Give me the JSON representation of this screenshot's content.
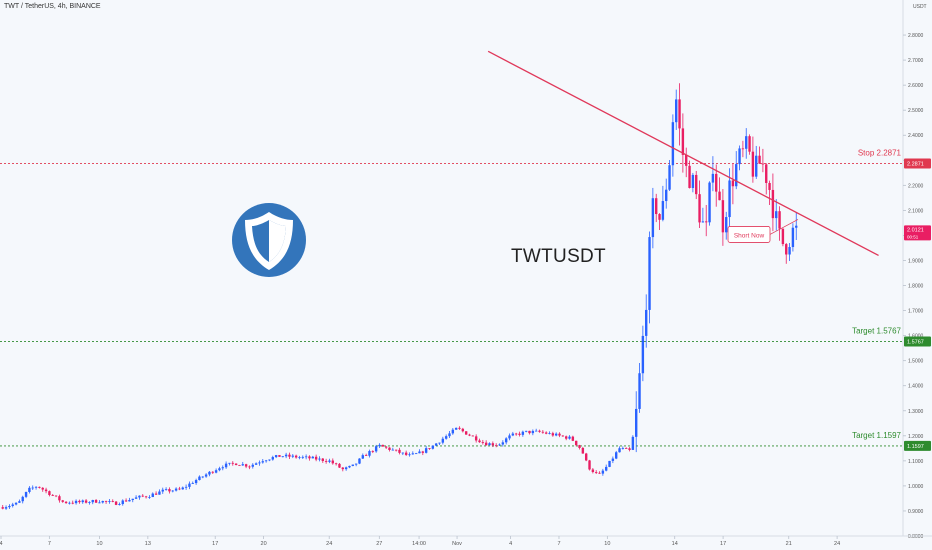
{
  "header": {
    "title": "TWT / TetherUS, 4h, BINANCE"
  },
  "axis": {
    "unit": "USDT"
  },
  "symbol_label": "TWTUSDT",
  "logo": {
    "icon": "trust-wallet-shield-icon",
    "color": "#3375bb"
  },
  "colors": {
    "up": "#2962ff",
    "down": "#e91e63",
    "stop": "#e0384f",
    "target": "#2e8b2e",
    "trend": "#e0385a"
  },
  "levels": [
    {
      "name": "stop-level",
      "label": "Stop 2.2871",
      "value": 2.2871,
      "tag": "2.2871",
      "kind": "stop"
    },
    {
      "name": "target-level-1",
      "label": "Target 1.5767",
      "value": 1.5767,
      "tag": "1.5767",
      "kind": "target"
    },
    {
      "name": "target-level-2",
      "label": "Target 1.1597",
      "value": 1.1597,
      "tag": "1.1597",
      "kind": "target"
    }
  ],
  "price_tag": {
    "value": 2.0121,
    "label": "2.0121",
    "sub": "00:51"
  },
  "annotation": {
    "text": "Short Now",
    "x": 21.1,
    "y": 2.0
  },
  "trendline": [
    {
      "x": 14.1,
      "y": 2.735
    },
    {
      "x": 25.4,
      "y": 1.92
    }
  ],
  "chart_data": {
    "type": "candlestick",
    "ylim": [
      0.8,
      2.9
    ],
    "y_ticks": [
      0.8,
      0.9,
      1.0,
      1.1,
      1.2,
      1.3,
      1.4,
      1.5,
      1.6,
      1.7,
      1.8,
      1.9,
      2.0,
      2.1,
      2.2,
      2.3,
      2.4,
      2.5,
      2.6,
      2.7,
      2.8
    ],
    "y_tick_labels": [
      "0.8000",
      "0.9000",
      "1.0000",
      "1.1000",
      "1.2000",
      "1.3000",
      "1.4000",
      "1.5000",
      "1.6000",
      "1.7000",
      "1.8000",
      "1.9000",
      "2.0000",
      "2.1000",
      "2.2000",
      "2.3000",
      "2.4000",
      "2.5000",
      "2.6000",
      "2.7000",
      "2.8000"
    ],
    "x_ticks": [
      {
        "label": "4",
        "x": 0.0
      },
      {
        "label": "7",
        "x": 1.4
      },
      {
        "label": "10",
        "x": 2.85
      },
      {
        "label": "13",
        "x": 4.25
      },
      {
        "label": "17",
        "x": 6.2
      },
      {
        "label": "20",
        "x": 7.6
      },
      {
        "label": "24",
        "x": 9.5
      },
      {
        "label": "27",
        "x": 10.95
      },
      {
        "label": "14:00",
        "x": 12.1
      },
      {
        "label": "Nov",
        "x": 13.2
      },
      {
        "label": "4",
        "x": 14.75
      },
      {
        "label": "7",
        "x": 16.15
      },
      {
        "label": "10",
        "x": 17.55
      },
      {
        "label": "14",
        "x": 19.5
      },
      {
        "label": "17",
        "x": 20.9
      },
      {
        "label": "21",
        "x": 22.8
      },
      {
        "label": "24",
        "x": 24.2
      }
    ],
    "anchors": [
      [
        0.0,
        0.915
      ],
      [
        0.5,
        0.93
      ],
      [
        0.8,
        0.985
      ],
      [
        1.05,
        1.0
      ],
      [
        1.4,
        0.97
      ],
      [
        1.8,
        0.935
      ],
      [
        2.3,
        0.935
      ],
      [
        2.85,
        0.94
      ],
      [
        3.3,
        0.93
      ],
      [
        3.7,
        0.945
      ],
      [
        4.0,
        0.955
      ],
      [
        4.25,
        0.96
      ],
      [
        4.7,
        0.98
      ],
      [
        5.2,
        0.985
      ],
      [
        5.6,
        1.02
      ],
      [
        6.0,
        1.05
      ],
      [
        6.4,
        1.08
      ],
      [
        6.8,
        1.09
      ],
      [
        7.2,
        1.08
      ],
      [
        7.6,
        1.105
      ],
      [
        8.1,
        1.12
      ],
      [
        8.6,
        1.115
      ],
      [
        9.0,
        1.11
      ],
      [
        9.5,
        1.1
      ],
      [
        9.9,
        1.065
      ],
      [
        10.2,
        1.08
      ],
      [
        10.5,
        1.12
      ],
      [
        10.95,
        1.16
      ],
      [
        11.4,
        1.14
      ],
      [
        11.8,
        1.12
      ],
      [
        12.1,
        1.13
      ],
      [
        12.5,
        1.16
      ],
      [
        12.9,
        1.2
      ],
      [
        13.2,
        1.23
      ],
      [
        13.6,
        1.2
      ],
      [
        14.0,
        1.17
      ],
      [
        14.4,
        1.165
      ],
      [
        14.75,
        1.2
      ],
      [
        15.2,
        1.215
      ],
      [
        15.6,
        1.215
      ],
      [
        16.15,
        1.2
      ],
      [
        16.5,
        1.19
      ],
      [
        16.8,
        1.145
      ],
      [
        17.0,
        1.075
      ],
      [
        17.3,
        1.04
      ],
      [
        17.55,
        1.08
      ],
      [
        17.9,
        1.15
      ],
      [
        18.2,
        1.14
      ],
      [
        18.3,
        1.2
      ],
      [
        18.4,
        1.3
      ],
      [
        18.5,
        1.46
      ],
      [
        18.6,
        1.62
      ],
      [
        18.7,
        1.8
      ],
      [
        18.8,
        2.0
      ],
      [
        18.9,
        2.15
      ],
      [
        19.1,
        2.05
      ],
      [
        19.25,
        2.2
      ],
      [
        19.4,
        2.35
      ],
      [
        19.5,
        2.6
      ],
      [
        19.65,
        2.4
      ],
      [
        19.8,
        2.27
      ],
      [
        20.0,
        2.22
      ],
      [
        20.2,
        2.1
      ],
      [
        20.4,
        2.0
      ],
      [
        20.6,
        2.3
      ],
      [
        20.75,
        2.15
      ],
      [
        20.9,
        2.05
      ],
      [
        21.1,
        2.2
      ],
      [
        21.35,
        2.3
      ],
      [
        21.6,
        2.35
      ],
      [
        21.8,
        2.25
      ],
      [
        22.0,
        2.3
      ],
      [
        22.2,
        2.22
      ],
      [
        22.4,
        2.08
      ],
      [
        22.55,
        1.98
      ],
      [
        22.7,
        1.96
      ],
      [
        22.8,
        1.99
      ],
      [
        22.95,
        2.02
      ],
      [
        23.1,
        2.01
      ]
    ]
  }
}
